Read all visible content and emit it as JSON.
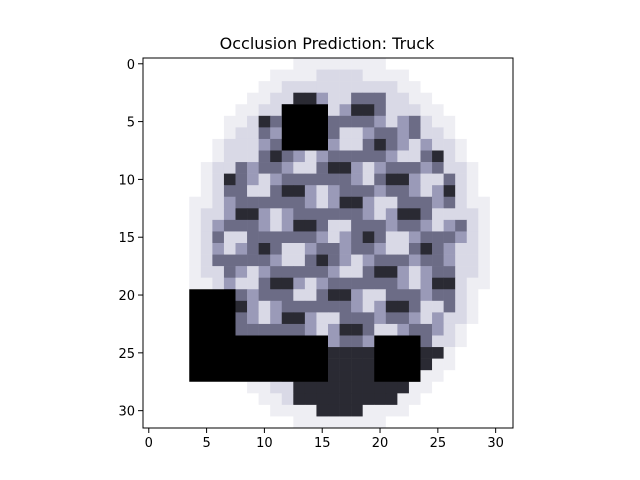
{
  "title": "Occlusion Prediction: Truck",
  "image": {
    "description_free": true,
    "grid_size": 32,
    "subject": "vehicle",
    "palette": {
      "background": "#ffffff",
      "light": "#d9d9e6",
      "mid": "#9a9ab8",
      "dark_mid": "#6c6c86",
      "dark": "#2a2a33",
      "black": "#000000"
    },
    "occlusion_patches": [
      {
        "row_start": 4,
        "row_end": 7,
        "col_start": 12,
        "col_end": 15
      },
      {
        "row_start": 20,
        "row_end": 27,
        "col_start": 4,
        "col_end": 7
      },
      {
        "row_start": 24,
        "row_end": 27,
        "col_start": 8,
        "col_end": 15
      },
      {
        "row_start": 24,
        "row_end": 27,
        "col_start": 20,
        "col_end": 23
      }
    ]
  },
  "axes": {
    "x_ticks": [
      "0",
      "5",
      "10",
      "15",
      "20",
      "25",
      "30"
    ],
    "y_ticks": [
      "0",
      "5",
      "10",
      "15",
      "20",
      "25",
      "30"
    ],
    "x_tick_values": [
      0,
      5,
      10,
      15,
      20,
      25,
      30
    ],
    "y_tick_values": [
      0,
      5,
      10,
      15,
      20,
      25,
      30
    ],
    "xlim": [
      -0.5,
      31.5
    ],
    "ylim": [
      31.5,
      -0.5
    ]
  }
}
